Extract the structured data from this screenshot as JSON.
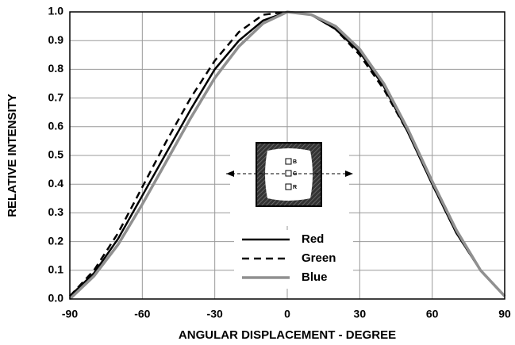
{
  "chart_data": {
    "type": "line",
    "xlabel": "ANGULAR DISPLACEMENT - DEGREE",
    "ylabel": "RELATIVE INTENSITY",
    "x": [
      -90,
      -80,
      -70,
      -60,
      -50,
      -40,
      -30,
      -20,
      -10,
      0,
      10,
      20,
      30,
      40,
      50,
      60,
      70,
      80,
      90
    ],
    "series": [
      {
        "name": "Red",
        "color": "#000000",
        "style": "solid",
        "values": [
          0.01,
          0.09,
          0.21,
          0.36,
          0.51,
          0.66,
          0.8,
          0.9,
          0.97,
          1.0,
          0.99,
          0.94,
          0.86,
          0.74,
          0.58,
          0.4,
          0.23,
          0.1,
          0.01
        ]
      },
      {
        "name": "Green",
        "color": "#000000",
        "style": "dashed",
        "values": [
          0.01,
          0.1,
          0.23,
          0.39,
          0.55,
          0.7,
          0.83,
          0.93,
          0.99,
          1.0,
          0.99,
          0.94,
          0.85,
          0.73,
          0.58,
          0.4,
          0.23,
          0.1,
          0.01
        ]
      },
      {
        "name": "Blue",
        "color": "#909090",
        "style": "solid",
        "values": [
          0.0,
          0.08,
          0.19,
          0.33,
          0.48,
          0.63,
          0.77,
          0.88,
          0.96,
          1.0,
          0.99,
          0.95,
          0.87,
          0.75,
          0.59,
          0.41,
          0.24,
          0.1,
          0.01
        ]
      }
    ],
    "xlim": [
      -90,
      90
    ],
    "xticks": [
      -90,
      -60,
      -30,
      0,
      30,
      60,
      90
    ],
    "ylim": [
      0,
      1
    ],
    "yticks": [
      {
        "value": 0,
        "label": "0.0"
      },
      0.1,
      0.2,
      0.3,
      0.4,
      0.5,
      0.6,
      0.7,
      0.8,
      0.9,
      {
        "value": 1,
        "label": "1.0"
      }
    ],
    "grid": true,
    "inset_labels": [
      "B",
      "G",
      "R"
    ]
  }
}
